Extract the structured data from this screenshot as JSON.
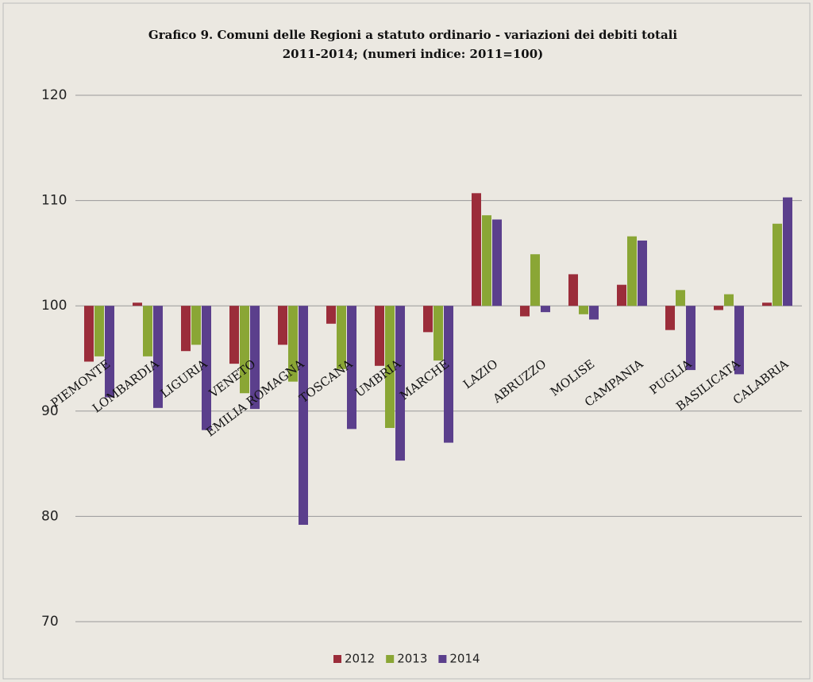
{
  "chart_data": {
    "type": "bar",
    "title": [
      "Grafico 9. Comuni delle Regioni a statuto ordinario - variazioni dei debiti totali",
      "2011-2014; (numeri indice: 2011=100)"
    ],
    "categories": [
      "PIEMONTE",
      "LOMBARDIA",
      "LIGURIA",
      "VENETO",
      "EMILIA ROMAGNA",
      "TOSCANA",
      "UMBRIA",
      "MARCHE",
      "LAZIO",
      "ABRUZZO",
      "MOLISE",
      "CAMPANIA",
      "PUGLIA",
      "BASILICATA",
      "CALABRIA"
    ],
    "series": [
      {
        "name": "2012",
        "color": "#9b2d3a",
        "values": [
          94.7,
          100.3,
          95.7,
          94.5,
          96.3,
          98.3,
          94.3,
          97.5,
          110.7,
          99.0,
          103.0,
          102.0,
          97.7,
          99.6,
          100.3
        ]
      },
      {
        "name": "2013",
        "color": "#8aa635",
        "values": [
          95.2,
          95.2,
          96.3,
          91.7,
          92.8,
          94.0,
          88.4,
          94.8,
          108.6,
          104.9,
          99.2,
          106.6,
          101.5,
          101.1,
          107.8
        ]
      },
      {
        "name": "2014",
        "color": "#5b3f8c",
        "values": [
          91.3,
          90.3,
          88.2,
          90.2,
          79.2,
          88.3,
          85.3,
          87.0,
          108.2,
          99.4,
          98.7,
          106.2,
          93.9,
          93.5,
          110.3
        ]
      }
    ],
    "baseline": 100,
    "ylim": [
      70,
      120
    ],
    "yticks": [
      70,
      80,
      90,
      100,
      110,
      120
    ],
    "grid": true,
    "legend": "bottom"
  }
}
